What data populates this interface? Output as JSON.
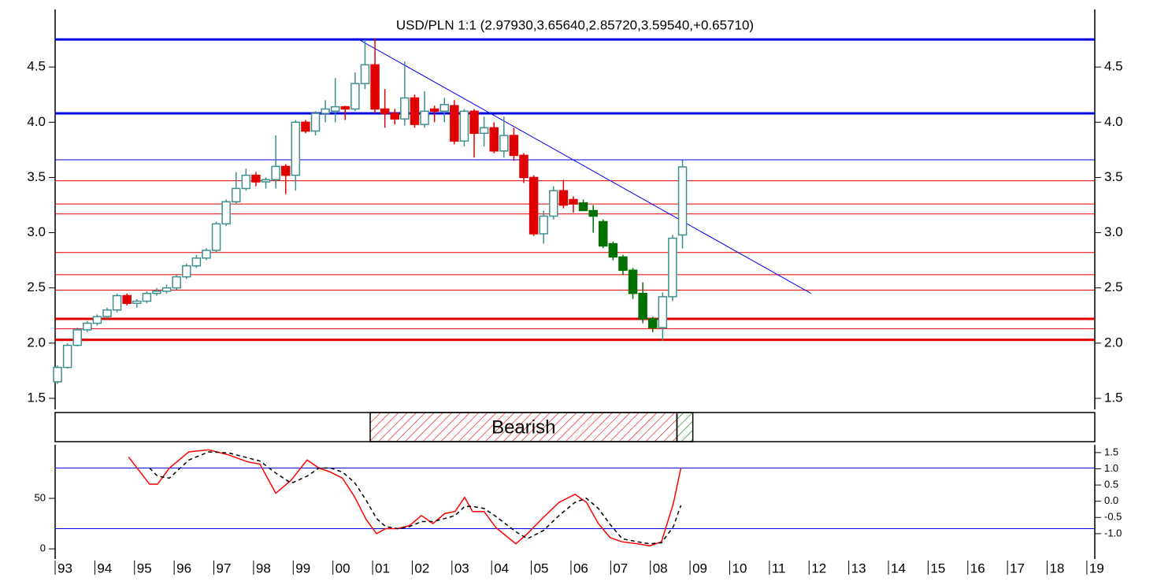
{
  "chart_data": {
    "type": "candlestick",
    "title": "USD/PLN 1:1 (2.97930,3.65640,2.85720,3.59540,+0.65710)",
    "xlim": [
      1993,
      2019.2
    ],
    "xticks": [
      {
        "value": 1993,
        "label": "93"
      },
      {
        "value": 1994,
        "label": "94"
      },
      {
        "value": 1995,
        "label": "95"
      },
      {
        "value": 1996,
        "label": "96"
      },
      {
        "value": 1997,
        "label": "97"
      },
      {
        "value": 1998,
        "label": "98"
      },
      {
        "value": 1999,
        "label": "99"
      },
      {
        "value": 2000,
        "label": "00"
      },
      {
        "value": 2001,
        "label": "01"
      },
      {
        "value": 2002,
        "label": "02"
      },
      {
        "value": 2003,
        "label": "03"
      },
      {
        "value": 2004,
        "label": "04"
      },
      {
        "value": 2005,
        "label": "05"
      },
      {
        "value": 2006,
        "label": "06"
      },
      {
        "value": 2007,
        "label": "07"
      },
      {
        "value": 2008,
        "label": "08"
      },
      {
        "value": 2009,
        "label": "09"
      },
      {
        "value": 2010,
        "label": "10"
      },
      {
        "value": 2011,
        "label": "11"
      },
      {
        "value": 2012,
        "label": "12"
      },
      {
        "value": 2013,
        "label": "13"
      },
      {
        "value": 2014,
        "label": "14"
      },
      {
        "value": 2015,
        "label": "15"
      },
      {
        "value": 2016,
        "label": "16"
      },
      {
        "value": 2017,
        "label": "17"
      },
      {
        "value": 2018,
        "label": "18"
      },
      {
        "value": 2019,
        "label": "19"
      }
    ],
    "ylim": [
      1.4,
      5.0
    ],
    "yticks": [
      1.5,
      {
        "value": 2.0,
        "label": "2.0"
      },
      2.5,
      {
        "value": 3.0,
        "label": "3.0"
      },
      3.5,
      {
        "value": 4.0,
        "label": "4.0"
      },
      4.5
    ],
    "series": [
      {
        "color": "#e00000",
        "up_color": "#3f8f8f",
        "x": [
          1993.06,
          1993.31,
          1993.56,
          1993.81,
          1994.06,
          1994.31,
          1994.56,
          1994.81,
          1995.06,
          1995.31,
          1995.56,
          1995.81,
          1996.06,
          1996.31,
          1996.56,
          1996.81,
          1997.06,
          1997.31,
          1997.56,
          1997.81,
          1998.06,
          1998.31,
          1998.56,
          1998.81,
          1999.06,
          1999.31,
          1999.56,
          1999.81,
          2000.06,
          2000.31,
          2000.56,
          2000.81,
          2001.06,
          2001.31,
          2001.56,
          2001.81,
          2002.06,
          2002.31,
          2002.56,
          2002.81,
          2003.06,
          2003.31,
          2003.56,
          2003.81,
          2004.06,
          2004.31,
          2004.56,
          2004.81,
          2005.06,
          2005.31,
          2005.56,
          2005.81,
          2006.06
        ],
        "open": [
          1.65,
          1.78,
          1.98,
          2.12,
          2.18,
          2.24,
          2.3,
          2.43,
          2.36,
          2.38,
          2.45,
          2.47,
          2.5,
          2.6,
          2.7,
          2.77,
          2.84,
          3.08,
          3.28,
          3.4,
          3.52,
          3.46,
          3.48,
          3.6,
          3.52,
          4.0,
          3.92,
          4.08,
          4.1,
          4.14,
          4.12,
          4.35,
          4.52,
          4.12,
          4.08,
          4.03,
          4.22,
          3.98,
          4.12,
          4.1,
          4.15,
          3.83,
          4.1,
          3.9,
          3.95,
          3.74,
          3.88,
          3.7,
          3.5,
          2.99,
          3.15,
          3.38,
          3.3
        ],
        "high": [
          1.8,
          2.0,
          2.14,
          2.2,
          2.26,
          2.32,
          2.45,
          2.45,
          2.4,
          2.47,
          2.5,
          2.53,
          2.62,
          2.72,
          2.8,
          2.86,
          3.1,
          3.3,
          3.55,
          3.58,
          3.55,
          3.5,
          3.88,
          3.62,
          4.02,
          4.02,
          4.1,
          4.2,
          4.4,
          4.15,
          4.45,
          4.75,
          4.76,
          4.3,
          4.12,
          4.55,
          4.25,
          4.28,
          4.15,
          4.22,
          4.2,
          4.12,
          4.12,
          4.05,
          4.0,
          4.05,
          3.95,
          3.72,
          3.52,
          3.2,
          3.42,
          3.48,
          3.33
        ],
        "low": [
          1.63,
          1.77,
          1.97,
          2.1,
          2.16,
          2.22,
          2.28,
          2.34,
          2.32,
          2.36,
          2.43,
          2.45,
          2.48,
          2.58,
          2.68,
          2.75,
          2.82,
          3.06,
          3.26,
          3.38,
          3.42,
          3.4,
          3.4,
          3.35,
          3.38,
          3.9,
          3.88,
          4.0,
          4.0,
          4.02,
          4.1,
          4.3,
          4.08,
          3.95,
          3.98,
          3.97,
          3.95,
          3.95,
          4.0,
          4.0,
          3.8,
          3.78,
          3.68,
          3.78,
          3.72,
          3.68,
          3.65,
          3.45,
          2.97,
          2.9,
          3.12,
          3.22,
          3.18
        ],
        "close": [
          1.78,
          1.98,
          2.12,
          2.18,
          2.24,
          2.3,
          2.43,
          2.36,
          2.38,
          2.45,
          2.47,
          2.5,
          2.6,
          2.7,
          2.77,
          2.84,
          3.08,
          3.28,
          3.4,
          3.52,
          3.46,
          3.48,
          3.6,
          3.52,
          4.0,
          3.92,
          4.08,
          4.12,
          4.14,
          4.12,
          4.35,
          4.52,
          4.12,
          4.08,
          4.03,
          4.22,
          3.98,
          4.1,
          4.1,
          4.16,
          3.83,
          4.1,
          3.9,
          3.95,
          3.74,
          3.88,
          3.7,
          3.5,
          2.99,
          3.15,
          3.38,
          3.25,
          3.26
        ]
      },
      {
        "color": "#007000",
        "up_color": "#3f8f8f",
        "x": [
          2006.31,
          2006.56,
          2006.81,
          2007.06,
          2007.31,
          2007.56,
          2007.81,
          2008.06,
          2008.31,
          2008.56,
          2008.81
        ],
        "open": [
          3.27,
          3.2,
          3.1,
          2.9,
          2.78,
          2.66,
          2.45,
          2.22,
          2.14,
          2.42,
          2.9793
        ],
        "high": [
          3.3,
          3.25,
          3.12,
          2.92,
          2.8,
          2.68,
          2.55,
          2.24,
          2.46,
          2.98,
          3.6564
        ],
        "low": [
          3.2,
          3.0,
          2.86,
          2.75,
          2.62,
          2.4,
          2.18,
          2.1,
          2.02,
          2.38,
          2.8572
        ],
        "close": [
          3.2,
          3.15,
          2.88,
          2.78,
          2.66,
          2.45,
          2.22,
          2.14,
          2.42,
          2.95,
          3.5954
        ]
      }
    ],
    "hlines": [
      {
        "value": 4.75,
        "color": "#0000e0",
        "width": 3
      },
      {
        "value": 4.08,
        "color": "#0000e0",
        "width": 3
      },
      {
        "value": 3.66,
        "color": "#0000e0",
        "width": 1
      },
      {
        "value": 3.47,
        "color": "#e00000",
        "width": 1
      },
      {
        "value": 3.26,
        "color": "#e00000",
        "width": 1
      },
      {
        "value": 3.17,
        "color": "#e00000",
        "width": 1
      },
      {
        "value": 2.82,
        "color": "#e00000",
        "width": 1
      },
      {
        "value": 2.62,
        "color": "#e00000",
        "width": 1
      },
      {
        "value": 2.48,
        "color": "#e00000",
        "width": 1
      },
      {
        "value": 2.22,
        "color": "#e00000",
        "width": 3
      },
      {
        "value": 2.13,
        "color": "#e00000",
        "width": 1
      },
      {
        "value": 2.03,
        "color": "#e00000",
        "width": 3
      }
    ],
    "trendline": {
      "x": [
        2000.6,
        2012.05
      ],
      "y": [
        4.76,
        2.45
      ],
      "color": "#0000ff"
    },
    "regimes": [
      {
        "label": "Bearish",
        "start": 2000.94,
        "end": 2008.67,
        "color": "#e00000"
      },
      {
        "start": 2008.67,
        "end": 2009.07,
        "color": "#007000"
      }
    ],
    "oscillator": {
      "ylim": [
        -10,
        103
      ],
      "yticks": [
        0,
        50
      ],
      "y2lim": [
        -1.78,
        1.74
      ],
      "y2ticks": [
        1.5,
        {
          "value": 1.0,
          "label": "1.0"
        },
        0.5,
        {
          "value": 0.0,
          "label": "0.0"
        },
        -0.5,
        {
          "value": -1.0,
          "label": "-1.0"
        }
      ],
      "levels": [
        {
          "value": 80,
          "color": "#0000e0"
        },
        {
          "value": 20,
          "color": "#0000e0"
        }
      ],
      "x": [
        1994.85,
        1995.38,
        1995.58,
        1995.88,
        1996.37,
        1996.87,
        1997.37,
        1997.86,
        1998.16,
        1998.56,
        1998.95,
        1999.35,
        1999.65,
        1999.94,
        2000.24,
        2000.54,
        2000.84,
        2001.1,
        2001.33,
        2001.63,
        2001.93,
        2002.23,
        2002.52,
        2002.82,
        2003.08,
        2003.32,
        2003.52,
        2003.81,
        2004.11,
        2004.61,
        2004.9,
        2005.3,
        2005.7,
        2006.1,
        2006.39,
        2006.69,
        2006.99,
        2007.29,
        2007.68,
        2007.98,
        2008.28,
        2008.58,
        2008.77
      ],
      "series": [
        {
          "color": "#ff0000",
          "dashed": false,
          "values": [
            91,
            64,
            64,
            80,
            96,
            98,
            93,
            86,
            84,
            55,
            68,
            88,
            80,
            76,
            70,
            52,
            29,
            15,
            20,
            20,
            23,
            33,
            25,
            35,
            37,
            51,
            37,
            37,
            21,
            5,
            15,
            31,
            46,
            54,
            46,
            25,
            11,
            7,
            5,
            3,
            7,
            45,
            80
          ]
        },
        {
          "color": "#000000",
          "dashed": true,
          "values": [
            null,
            80,
            72,
            70,
            88,
            96,
            95,
            90,
            87,
            75,
            65,
            72,
            80,
            80,
            76,
            66,
            48,
            30,
            22,
            20,
            22,
            27,
            27,
            30,
            33,
            42,
            42,
            40,
            32,
            17,
            10,
            18,
            33,
            46,
            50,
            40,
            24,
            10,
            7,
            5,
            6,
            22,
            43
          ]
        }
      ]
    }
  }
}
